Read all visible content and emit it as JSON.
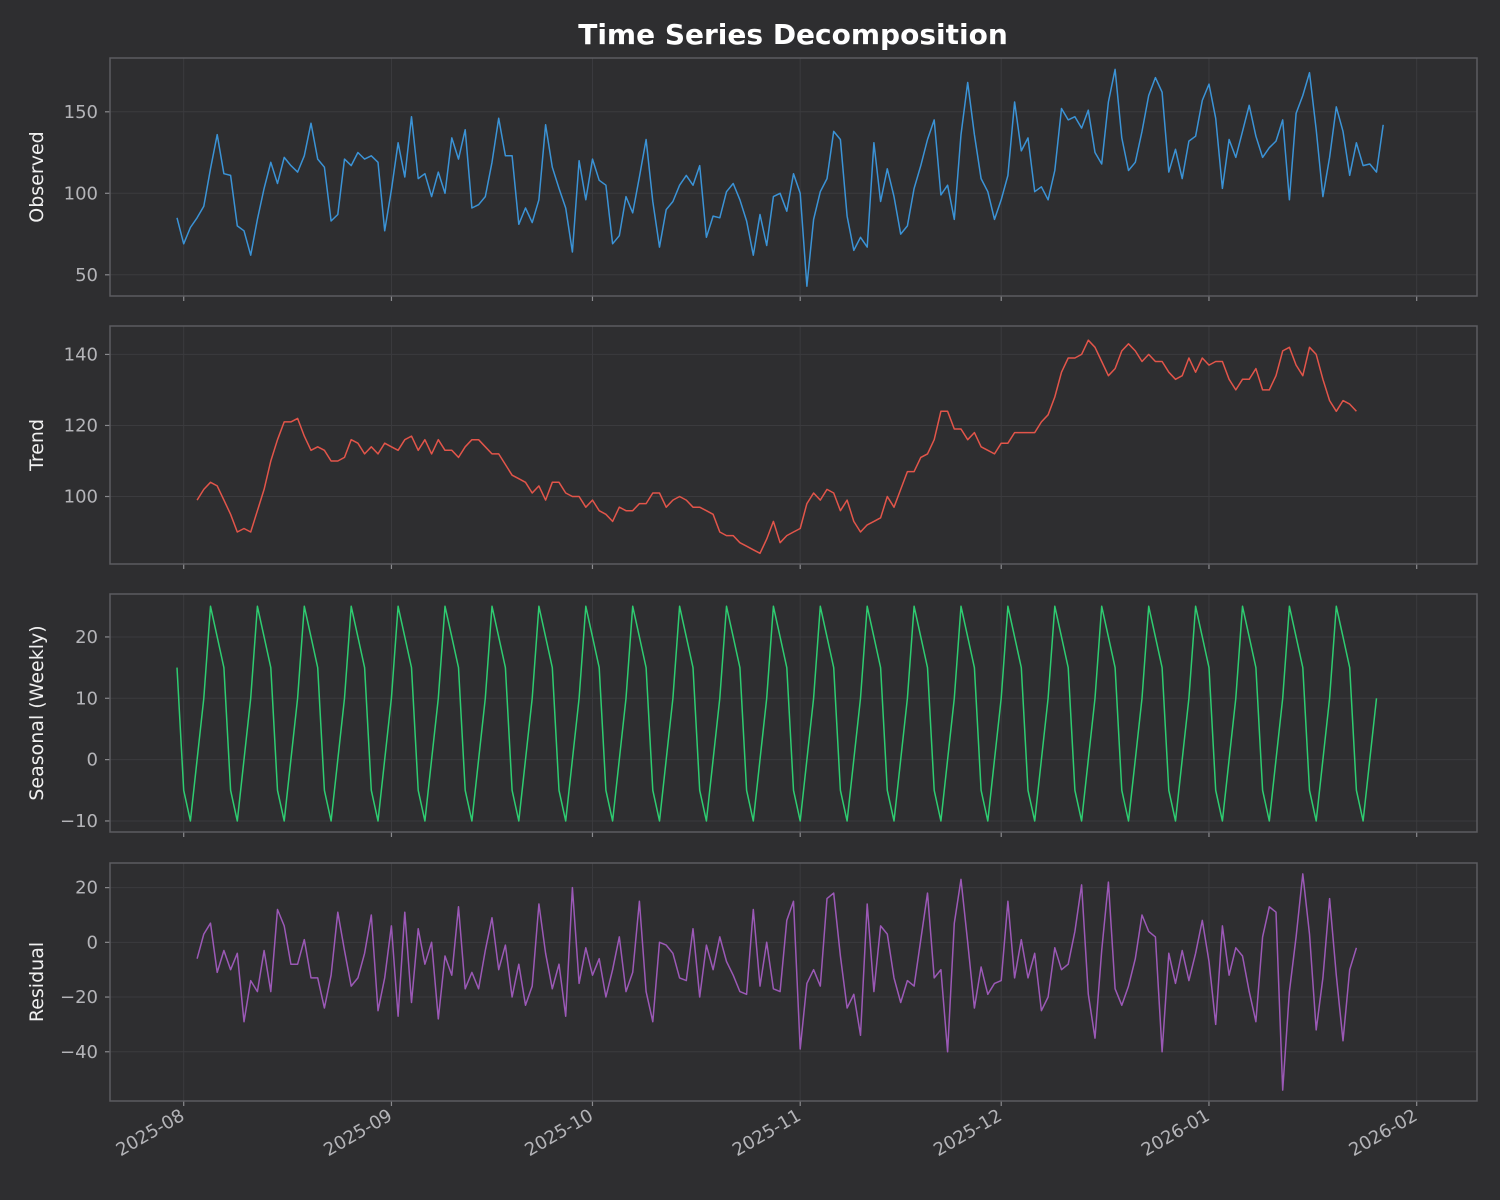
{
  "chart_data": {
    "type": "line",
    "title": "Time Series Decomposition",
    "x_start": "2025-07-31",
    "x_ticks": [
      "2025-08",
      "2025-09",
      "2025-10",
      "2025-11",
      "2025-12",
      "2026-01",
      "2026-02"
    ],
    "grid": true,
    "panels": [
      {
        "name": "Observed",
        "ylabel": "Observed",
        "color": "#3b93d6",
        "yticks": [
          50,
          100,
          150
        ],
        "ylim": [
          37,
          183
        ],
        "offset": 0,
        "values": [
          85,
          69,
          79,
          85,
          92,
          115,
          136,
          112,
          111,
          80,
          77,
          62,
          84,
          103,
          119,
          106,
          122,
          117,
          113,
          123,
          143,
          121,
          116,
          83,
          87,
          121,
          117,
          125,
          121,
          123,
          119,
          77,
          102,
          131,
          110,
          147,
          109,
          112,
          98,
          113,
          100,
          134,
          121,
          139,
          91,
          93,
          98,
          119,
          146,
          123,
          123,
          81,
          91,
          82,
          96,
          142,
          116,
          103,
          91,
          64,
          120,
          96,
          121,
          108,
          105,
          69,
          74,
          98,
          88,
          110,
          133,
          95,
          67,
          90,
          95,
          105,
          111,
          105,
          117,
          73,
          86,
          85,
          101,
          106,
          96,
          83,
          62,
          87,
          68,
          98,
          100,
          89,
          112,
          100,
          43,
          84,
          101,
          109,
          138,
          133,
          86,
          65,
          73,
          67,
          131,
          95,
          115,
          98,
          75,
          80,
          103,
          117,
          133,
          145,
          99,
          105,
          84,
          136,
          168,
          136,
          109,
          101,
          84,
          96,
          111,
          156,
          126,
          134,
          101,
          104,
          96,
          114,
          152,
          145,
          147,
          140,
          151,
          125,
          118,
          156,
          176,
          134,
          114,
          119,
          138,
          160,
          171,
          162,
          113,
          127,
          109,
          132,
          135,
          157,
          167,
          146,
          103,
          133,
          122,
          138,
          154,
          135,
          122,
          128,
          132,
          145,
          96,
          149,
          160,
          174,
          139,
          98,
          122,
          153,
          138,
          111,
          131,
          117,
          118,
          113,
          142
        ]
      },
      {
        "name": "Trend",
        "ylabel": "Trend",
        "color": "#e2554a",
        "yticks": [
          100,
          120,
          140
        ],
        "ylim": [
          81,
          148
        ],
        "offset": 3,
        "values": [
          99,
          102,
          104,
          103,
          99,
          95,
          90,
          91,
          90,
          96,
          102,
          110,
          116,
          121,
          121,
          122,
          117,
          113,
          114,
          113,
          110,
          110,
          111,
          116,
          115,
          112,
          114,
          112,
          115,
          114,
          113,
          116,
          117,
          113,
          116,
          112,
          116,
          113,
          113,
          111,
          114,
          116,
          116,
          114,
          112,
          112,
          109,
          106,
          105,
          104,
          101,
          103,
          99,
          104,
          104,
          101,
          100,
          100,
          97,
          99,
          96,
          95,
          93,
          97,
          96,
          96,
          98,
          98,
          101,
          101,
          97,
          99,
          100,
          99,
          97,
          97,
          96,
          95,
          90,
          89,
          89,
          87,
          86,
          85,
          84,
          88,
          93,
          87,
          89,
          90,
          91,
          98,
          101,
          99,
          102,
          101,
          96,
          99,
          93,
          90,
          92,
          93,
          94,
          100,
          97,
          102,
          107,
          107,
          111,
          112,
          116,
          124,
          124,
          119,
          119,
          116,
          118,
          114,
          113,
          112,
          115,
          115,
          118,
          118,
          118,
          118,
          121,
          123,
          128,
          135,
          139,
          139,
          140,
          144,
          142,
          138,
          134,
          136,
          141,
          143,
          141,
          138,
          140,
          138,
          138,
          135,
          133,
          134,
          139,
          135,
          139,
          137,
          138,
          138,
          133,
          130,
          133,
          133,
          136,
          130,
          130,
          134,
          141,
          142,
          137,
          134,
          142,
          140,
          133,
          127,
          124,
          127,
          126,
          124
        ]
      },
      {
        "name": "Seasonal (Weekly)",
        "ylabel": "Seasonal (Weekly)",
        "color": "#2ecc71",
        "yticks": [
          -10,
          0,
          10,
          20
        ],
        "ylim": [
          -11.8,
          27
        ],
        "offset": 0,
        "values": [
          15,
          -5,
          -10,
          0,
          10,
          25,
          20,
          15,
          -5,
          -10,
          0,
          10,
          25,
          20,
          15,
          -5,
          -10,
          0,
          10,
          25,
          20,
          15,
          -5,
          -10,
          0,
          10,
          25,
          20,
          15,
          -5,
          -10,
          0,
          10,
          25,
          20,
          15,
          -5,
          -10,
          0,
          10,
          25,
          20,
          15,
          -5,
          -10,
          0,
          10,
          25,
          20,
          15,
          -5,
          -10,
          0,
          10,
          25,
          20,
          15,
          -5,
          -10,
          0,
          10,
          25,
          20,
          15,
          -5,
          -10,
          0,
          10,
          25,
          20,
          15,
          -5,
          -10,
          0,
          10,
          25,
          20,
          15,
          -5,
          -10,
          0,
          10,
          25,
          20,
          15,
          -5,
          -10,
          0,
          10,
          25,
          20,
          15,
          -5,
          -10,
          0,
          10,
          25,
          20,
          15,
          -5,
          -10,
          0,
          10,
          25,
          20,
          15,
          -5,
          -10,
          0,
          10,
          25,
          20,
          15,
          -5,
          -10,
          0,
          10,
          25,
          20,
          15,
          -5,
          -10,
          0,
          10,
          25,
          20,
          15,
          -5,
          -10,
          0,
          10,
          25,
          20,
          15,
          -5,
          -10,
          0,
          10,
          25,
          20,
          15,
          -5,
          -10,
          0,
          10,
          25,
          20,
          15,
          -5,
          -10,
          0,
          10,
          25,
          20,
          15,
          -5,
          -10,
          0,
          10,
          25,
          20,
          15,
          -5,
          -10,
          0,
          10,
          25,
          20,
          15,
          -5,
          -10,
          0,
          10,
          25,
          20,
          15,
          -5,
          -10,
          0,
          10
        ]
      },
      {
        "name": "Residual",
        "ylabel": "Residual",
        "color": "#9b59b6",
        "yticks": [
          -40,
          -20,
          0,
          20
        ],
        "ylim": [
          -58,
          29
        ],
        "offset": 3,
        "values": [
          -6,
          3,
          7,
          -11,
          -3,
          -10,
          -4,
          -29,
          -14,
          -18,
          -3,
          -18,
          12,
          6,
          -8,
          -8,
          1,
          -13,
          -13,
          -24,
          -12,
          11,
          -3,
          -16,
          -13,
          -4,
          10,
          -25,
          -13,
          6,
          -27,
          11,
          -22,
          5,
          -8,
          0,
          -28,
          -5,
          -12,
          13,
          -17,
          -11,
          -17,
          -3,
          9,
          -10,
          -1,
          -20,
          -8,
          -23,
          -16,
          14,
          -4,
          -17,
          -8,
          -27,
          20,
          -15,
          -2,
          -12,
          -6,
          -20,
          -10,
          2,
          -18,
          -11,
          15,
          -18,
          -29,
          0,
          -1,
          -4,
          -13,
          -14,
          5,
          -20,
          -1,
          -10,
          2,
          -7,
          -12,
          -18,
          -19,
          12,
          -16,
          0,
          -17,
          -18,
          8,
          15,
          -39,
          -15,
          -10,
          -16,
          16,
          18,
          -5,
          -24,
          -19,
          -34,
          14,
          -18,
          6,
          3,
          -13,
          -22,
          -14,
          -16,
          1,
          18,
          -13,
          -10,
          -40,
          7,
          23,
          0,
          -24,
          -9,
          -19,
          -15,
          -14,
          15,
          -13,
          1,
          -13,
          -4,
          -25,
          -20,
          -2,
          -10,
          -8,
          4,
          21,
          -19,
          -35,
          -3,
          22,
          -17,
          -23,
          -16,
          -6,
          10,
          4,
          2,
          -40,
          -4,
          -15,
          -3,
          -14,
          -4,
          8,
          -7,
          -30,
          6,
          -12,
          -2,
          -5,
          -18,
          -29,
          2,
          13,
          11,
          -54,
          -18,
          2,
          25,
          3,
          -32,
          -13,
          16,
          -12,
          -36,
          -10,
          -2
        ]
      }
    ]
  }
}
